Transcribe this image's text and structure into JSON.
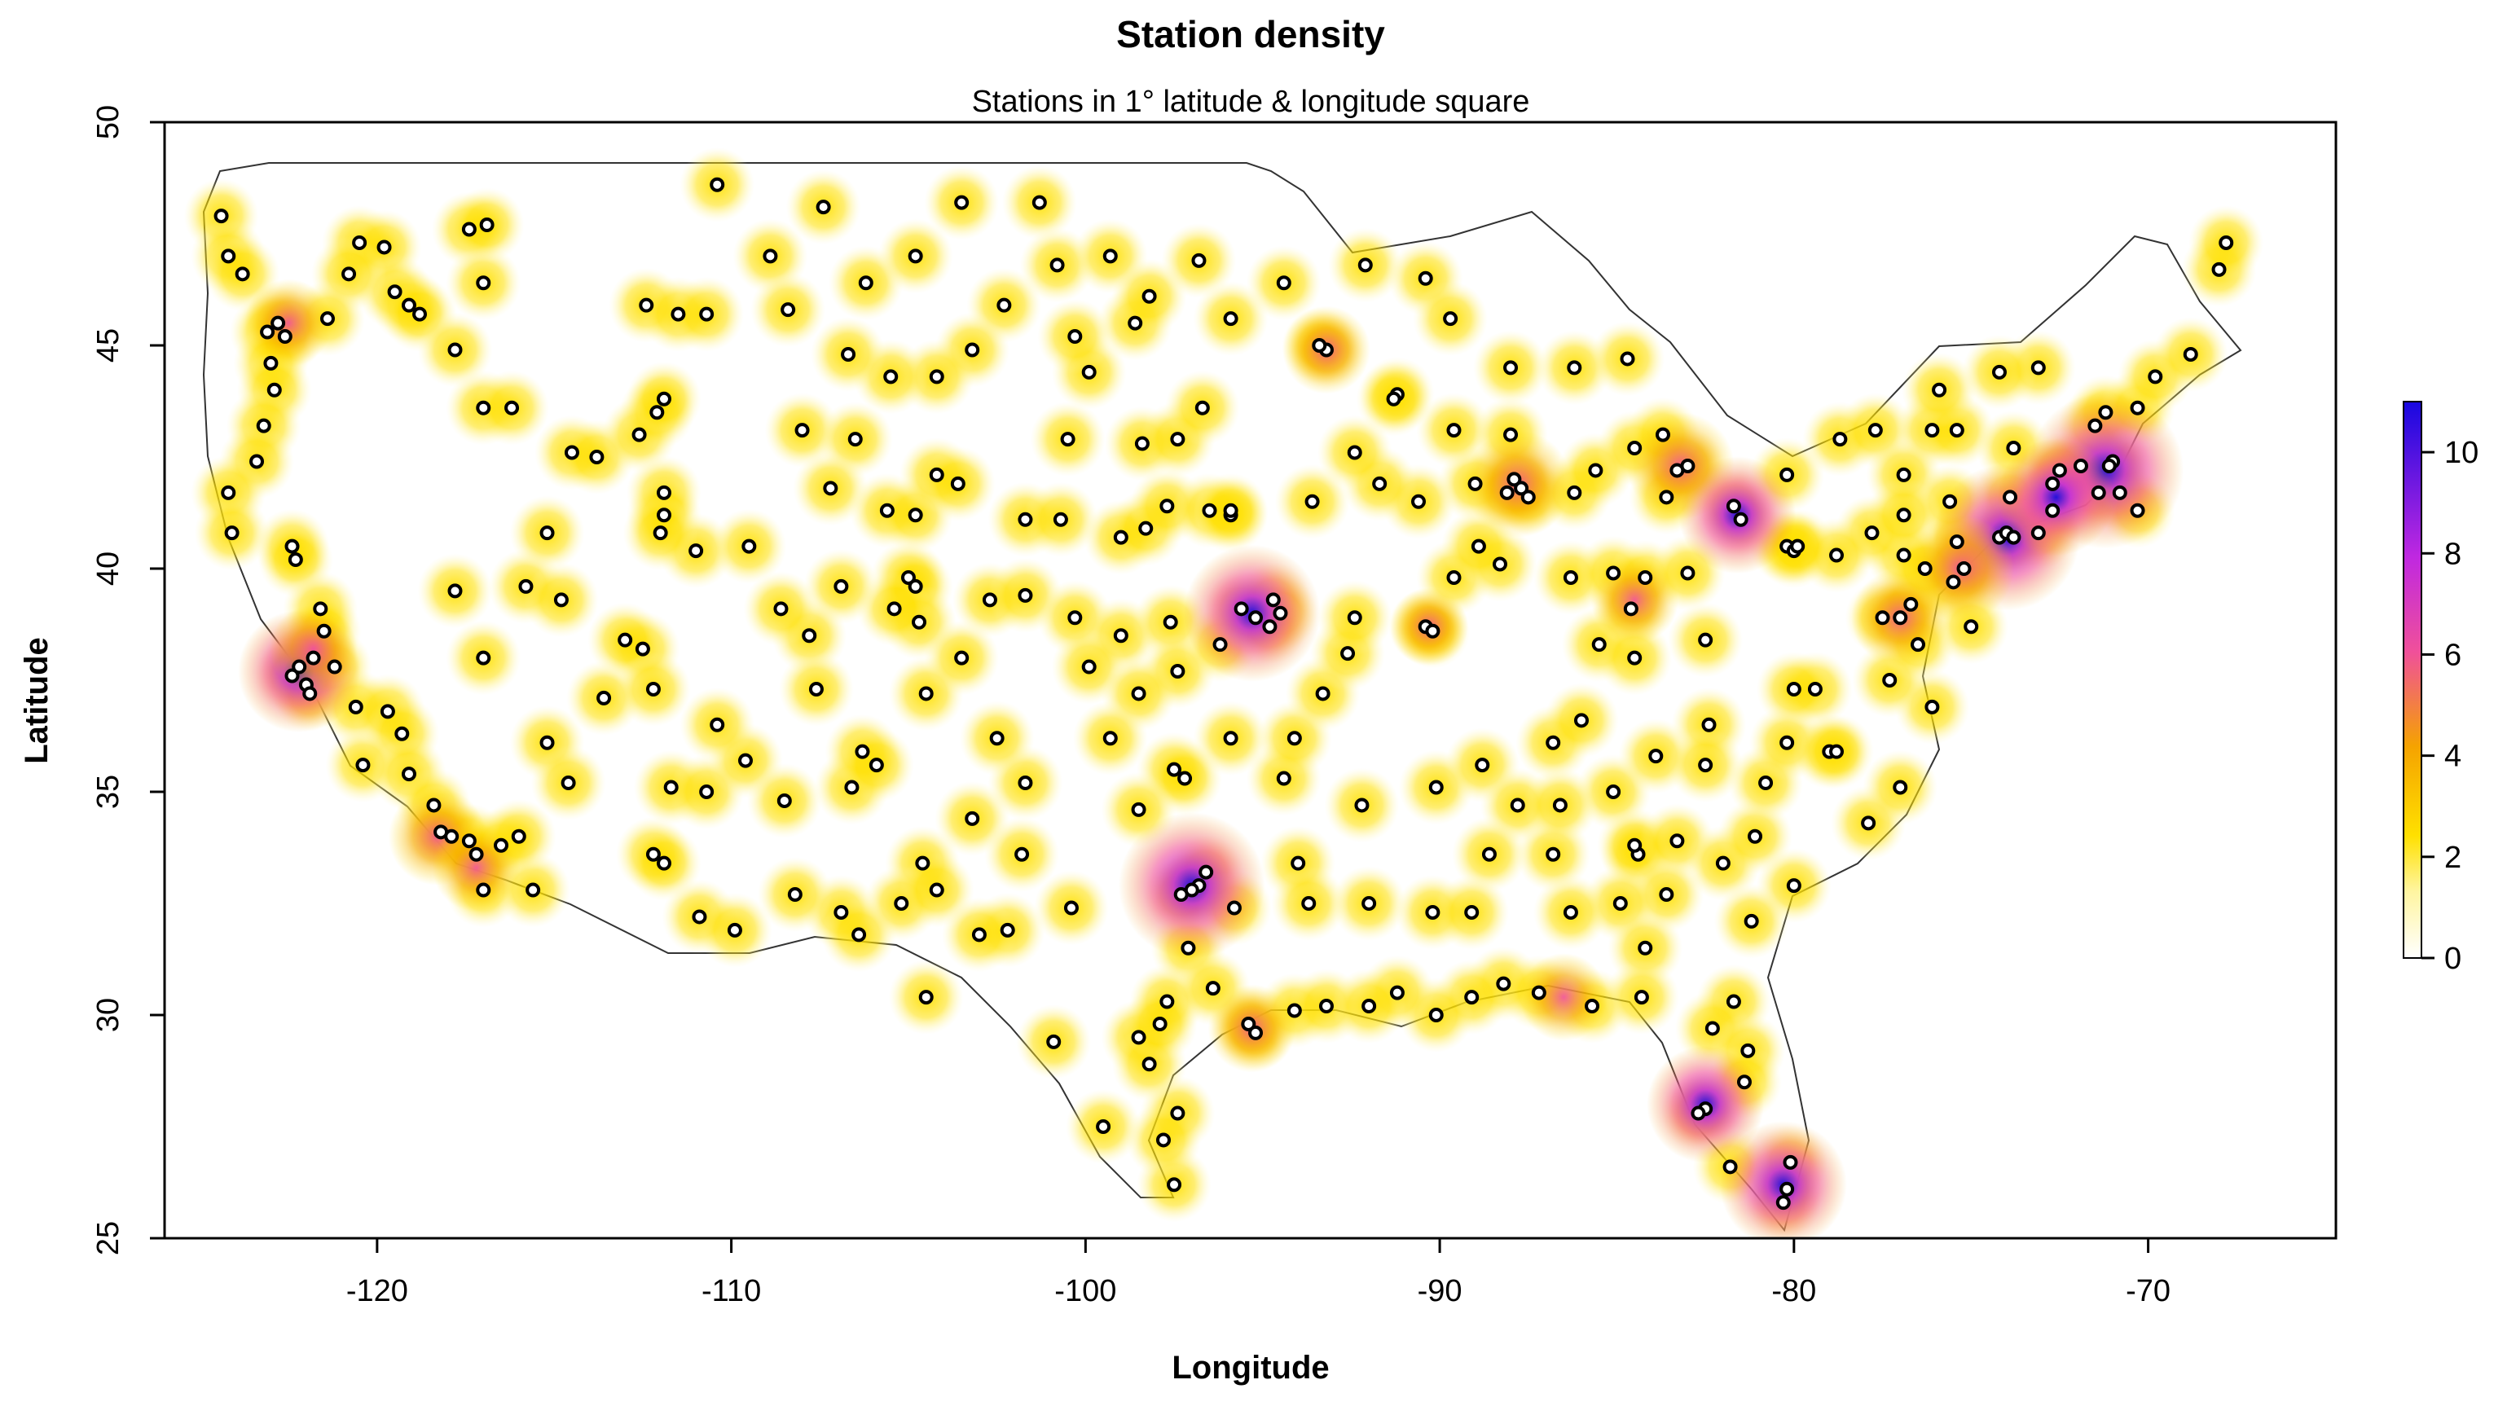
{
  "chart_data": {
    "type": "heatmap",
    "title": "Station density",
    "subtitle": "Stations in 1° latitude & longitude square",
    "xlabel": "Longitude",
    "ylabel": "Latitude",
    "xlim": [
      -126,
      -64.7
    ],
    "ylim": [
      25,
      50
    ],
    "x_ticks": [
      -120,
      -110,
      -100,
      -90,
      -80,
      -70
    ],
    "y_ticks": [
      25,
      30,
      35,
      40,
      45,
      50
    ],
    "x_tick_labels": [
      "-120",
      "-110",
      "-100",
      "-90",
      "-80",
      "-70"
    ],
    "y_tick_labels": [
      "25",
      "30",
      "35",
      "40",
      "45",
      "50"
    ],
    "colorbar": {
      "min": 0,
      "max": 11,
      "ticks": [
        0,
        2,
        4,
        6,
        8,
        10
      ],
      "tick_labels": [
        "0",
        "2",
        "4",
        "6",
        "8",
        "10"
      ],
      "colors": [
        "#ffffff",
        "#ffe800",
        "#f7a800",
        "#f0509a",
        "#b830e8",
        "#1a0de0"
      ]
    },
    "stations": [
      [
        -124.4,
        47.9
      ],
      [
        -124.2,
        47.0
      ],
      [
        -123.8,
        46.6
      ],
      [
        -123.1,
        45.3
      ],
      [
        -122.8,
        45.5
      ],
      [
        -122.6,
        45.2
      ],
      [
        -123.0,
        44.6
      ],
      [
        -122.9,
        44.0
      ],
      [
        -123.2,
        43.2
      ],
      [
        -123.4,
        42.4
      ],
      [
        -124.2,
        41.7
      ],
      [
        -124.1,
        40.8
      ],
      [
        -122.4,
        40.5
      ],
      [
        -122.3,
        40.2
      ],
      [
        -121.6,
        39.1
      ],
      [
        -121.5,
        38.6
      ],
      [
        -121.8,
        38.0
      ],
      [
        -122.2,
        37.8
      ],
      [
        -122.4,
        37.6
      ],
      [
        -122.0,
        37.4
      ],
      [
        -121.9,
        37.2
      ],
      [
        -121.2,
        37.8
      ],
      [
        -120.6,
        36.9
      ],
      [
        -119.7,
        36.8
      ],
      [
        -119.3,
        36.3
      ],
      [
        -120.4,
        35.6
      ],
      [
        -119.1,
        35.4
      ],
      [
        -118.4,
        34.7
      ],
      [
        -118.2,
        34.1
      ],
      [
        -117.9,
        34.0
      ],
      [
        -117.4,
        33.9
      ],
      [
        -117.2,
        33.6
      ],
      [
        -117.0,
        32.8
      ],
      [
        -116.5,
        33.8
      ],
      [
        -115.6,
        32.8
      ],
      [
        -116.0,
        34.0
      ],
      [
        -120.5,
        47.3
      ],
      [
        -119.8,
        47.2
      ],
      [
        -119.5,
        46.2
      ],
      [
        -119.1,
        45.9
      ],
      [
        -118.8,
        45.7
      ],
      [
        -120.8,
        46.6
      ],
      [
        -121.4,
        45.6
      ],
      [
        -117.4,
        47.6
      ],
      [
        -117.0,
        46.4
      ],
      [
        -116.9,
        47.7
      ],
      [
        -117.8,
        44.9
      ],
      [
        -117.0,
        43.6
      ],
      [
        -116.2,
        43.6
      ],
      [
        -114.5,
        42.6
      ],
      [
        -113.8,
        42.5
      ],
      [
        -112.6,
        43.0
      ],
      [
        -112.1,
        43.5
      ],
      [
        -111.9,
        43.8
      ],
      [
        -112.4,
        45.9
      ],
      [
        -111.5,
        45.7
      ],
      [
        -110.7,
        45.7
      ],
      [
        -111.9,
        41.7
      ],
      [
        -111.9,
        41.2
      ],
      [
        -111.0,
        40.4
      ],
      [
        -112.0,
        40.8
      ],
      [
        -109.5,
        40.5
      ],
      [
        -113.6,
        37.1
      ],
      [
        -112.5,
        38.2
      ],
      [
        -113.0,
        38.4
      ],
      [
        -112.2,
        37.3
      ],
      [
        -117.8,
        39.5
      ],
      [
        -117.0,
        38.0
      ],
      [
        -115.8,
        39.6
      ],
      [
        -115.2,
        40.8
      ],
      [
        -114.8,
        39.3
      ],
      [
        -115.2,
        36.1
      ],
      [
        -114.6,
        35.2
      ],
      [
        -112.2,
        33.6
      ],
      [
        -111.9,
        33.4
      ],
      [
        -110.9,
        32.2
      ],
      [
        -109.9,
        31.9
      ],
      [
        -111.7,
        35.1
      ],
      [
        -110.7,
        35.0
      ],
      [
        -109.6,
        35.7
      ],
      [
        -110.4,
        36.5
      ],
      [
        -108.5,
        34.8
      ],
      [
        -106.6,
        35.1
      ],
      [
        -106.3,
        35.9
      ],
      [
        -105.9,
        35.6
      ],
      [
        -104.6,
        33.4
      ],
      [
        -106.9,
        32.3
      ],
      [
        -105.2,
        32.5
      ],
      [
        -104.2,
        32.8
      ],
      [
        -103.2,
        34.4
      ],
      [
        -108.2,
        32.7
      ],
      [
        -110.4,
        48.6
      ],
      [
        -108.9,
        47.0
      ],
      [
        -107.4,
        48.1
      ],
      [
        -106.2,
        46.4
      ],
      [
        -104.8,
        47.0
      ],
      [
        -103.5,
        48.2
      ],
      [
        -101.3,
        48.2
      ],
      [
        -100.8,
        46.8
      ],
      [
        -99.3,
        47.0
      ],
      [
        -98.6,
        45.5
      ],
      [
        -98.2,
        46.1
      ],
      [
        -99.9,
        44.4
      ],
      [
        -100.3,
        45.2
      ],
      [
        -102.3,
        45.9
      ],
      [
        -103.2,
        44.9
      ],
      [
        -104.2,
        44.3
      ],
      [
        -105.5,
        44.3
      ],
      [
        -106.7,
        44.8
      ],
      [
        -108.4,
        45.8
      ],
      [
        -108.0,
        43.1
      ],
      [
        -106.5,
        42.9
      ],
      [
        -107.2,
        41.8
      ],
      [
        -105.6,
        41.3
      ],
      [
        -104.8,
        41.2
      ],
      [
        -104.2,
        42.1
      ],
      [
        -103.6,
        41.9
      ],
      [
        -101.7,
        41.1
      ],
      [
        -100.7,
        41.1
      ],
      [
        -99.0,
        40.7
      ],
      [
        -98.3,
        40.9
      ],
      [
        -97.7,
        41.4
      ],
      [
        -96.5,
        41.3
      ],
      [
        -95.9,
        41.2
      ],
      [
        -100.5,
        42.9
      ],
      [
        -98.4,
        42.8
      ],
      [
        -97.4,
        42.9
      ],
      [
        -96.7,
        43.6
      ],
      [
        -105.0,
        39.8
      ],
      [
        -104.8,
        39.6
      ],
      [
        -104.7,
        38.8
      ],
      [
        -105.4,
        39.1
      ],
      [
        -106.9,
        39.6
      ],
      [
        -107.8,
        38.5
      ],
      [
        -108.6,
        39.1
      ],
      [
        -107.6,
        37.3
      ],
      [
        -104.5,
        37.2
      ],
      [
        -103.5,
        38.0
      ],
      [
        -102.7,
        39.3
      ],
      [
        -101.7,
        39.4
      ],
      [
        -100.3,
        38.9
      ],
      [
        -99.0,
        38.5
      ],
      [
        -97.6,
        38.8
      ],
      [
        -97.4,
        37.7
      ],
      [
        -96.2,
        38.3
      ],
      [
        -95.6,
        39.1
      ],
      [
        -95.2,
        38.9
      ],
      [
        -94.7,
        39.3
      ],
      [
        -94.5,
        39.0
      ],
      [
        -94.8,
        38.7
      ],
      [
        -99.9,
        37.8
      ],
      [
        -98.5,
        37.2
      ],
      [
        -95.9,
        36.2
      ],
      [
        -97.5,
        35.5
      ],
      [
        -97.2,
        35.3
      ],
      [
        -98.5,
        34.6
      ],
      [
        -99.3,
        36.2
      ],
      [
        -101.7,
        35.2
      ],
      [
        -102.5,
        36.2
      ],
      [
        -101.8,
        33.6
      ],
      [
        -100.4,
        32.4
      ],
      [
        -102.2,
        31.9
      ],
      [
        -103.0,
        31.8
      ],
      [
        -104.5,
        30.4
      ],
      [
        -106.4,
        31.8
      ],
      [
        -100.9,
        29.4
      ],
      [
        -98.5,
        29.5
      ],
      [
        -97.7,
        30.3
      ],
      [
        -97.1,
        31.5
      ],
      [
        -96.8,
        32.9
      ],
      [
        -97.0,
        32.8
      ],
      [
        -97.3,
        32.7
      ],
      [
        -96.6,
        33.2
      ],
      [
        -95.8,
        32.4
      ],
      [
        -96.4,
        30.6
      ],
      [
        -95.4,
        29.8
      ],
      [
        -95.2,
        29.6
      ],
      [
        -94.1,
        30.1
      ],
      [
        -97.4,
        27.8
      ],
      [
        -97.5,
        26.2
      ],
      [
        -97.8,
        27.2
      ],
      [
        -98.2,
        28.9
      ],
      [
        -99.5,
        27.5
      ],
      [
        -97.9,
        29.8
      ],
      [
        -94.0,
        33.4
      ],
      [
        -93.7,
        32.5
      ],
      [
        -92.0,
        32.5
      ],
      [
        -92.2,
        34.7
      ],
      [
        -94.4,
        35.3
      ],
      [
        -94.1,
        36.2
      ],
      [
        -93.3,
        37.2
      ],
      [
        -92.6,
        38.1
      ],
      [
        -92.4,
        38.9
      ],
      [
        -90.4,
        38.7
      ],
      [
        -90.2,
        38.6
      ],
      [
        -89.6,
        39.8
      ],
      [
        -88.3,
        40.1
      ],
      [
        -88.9,
        40.5
      ],
      [
        -89.0,
        41.9
      ],
      [
        -87.7,
        41.8
      ],
      [
        -87.9,
        42.0
      ],
      [
        -88.1,
        41.7
      ],
      [
        -87.5,
        41.6
      ],
      [
        -86.2,
        41.7
      ],
      [
        -86.3,
        39.8
      ],
      [
        -85.1,
        39.9
      ],
      [
        -85.5,
        38.3
      ],
      [
        -84.6,
        39.1
      ],
      [
        -84.2,
        39.8
      ],
      [
        -84.5,
        38.0
      ],
      [
        -82.5,
        38.4
      ],
      [
        -83.0,
        39.9
      ],
      [
        -81.5,
        41.1
      ],
      [
        -81.7,
        41.4
      ],
      [
        -80.2,
        40.5
      ],
      [
        -80.0,
        40.4
      ],
      [
        -83.6,
        41.6
      ],
      [
        -83.0,
        42.3
      ],
      [
        -83.3,
        42.2
      ],
      [
        -85.6,
        42.2
      ],
      [
        -84.5,
        42.7
      ],
      [
        -83.7,
        43.0
      ],
      [
        -86.2,
        44.5
      ],
      [
        -84.7,
        44.7
      ],
      [
        -88.0,
        44.5
      ],
      [
        -89.6,
        43.1
      ],
      [
        -88.0,
        43.0
      ],
      [
        -91.2,
        43.9
      ],
      [
        -93.2,
        44.9
      ],
      [
        -93.4,
        45.0
      ],
      [
        -92.1,
        46.8
      ],
      [
        -94.4,
        46.4
      ],
      [
        -96.8,
        46.9
      ],
      [
        -95.9,
        45.6
      ],
      [
        -90.4,
        46.5
      ],
      [
        -89.7,
        45.6
      ],
      [
        -91.3,
        43.8
      ],
      [
        -90.6,
        41.5
      ],
      [
        -93.6,
        41.5
      ],
      [
        -91.7,
        41.9
      ],
      [
        -92.4,
        42.6
      ],
      [
        -95.9,
        41.3
      ],
      [
        -90.1,
        35.1
      ],
      [
        -88.8,
        35.6
      ],
      [
        -86.8,
        36.1
      ],
      [
        -86.0,
        36.6
      ],
      [
        -85.1,
        35.0
      ],
      [
        -83.9,
        35.8
      ],
      [
        -82.4,
        36.5
      ],
      [
        -82.5,
        35.6
      ],
      [
        -84.4,
        33.6
      ],
      [
        -84.5,
        33.8
      ],
      [
        -83.3,
        33.9
      ],
      [
        -82.0,
        33.4
      ],
      [
        -81.1,
        34.0
      ],
      [
        -80.0,
        32.9
      ],
      [
        -81.2,
        32.1
      ],
      [
        -83.6,
        32.7
      ],
      [
        -84.9,
        32.5
      ],
      [
        -84.2,
        31.5
      ],
      [
        -86.3,
        32.3
      ],
      [
        -86.8,
        33.6
      ],
      [
        -87.8,
        34.7
      ],
      [
        -86.6,
        34.7
      ],
      [
        -88.2,
        30.7
      ],
      [
        -87.2,
        30.5
      ],
      [
        -85.7,
        30.2
      ],
      [
        -84.3,
        30.4
      ],
      [
        -81.7,
        30.3
      ],
      [
        -82.3,
        29.7
      ],
      [
        -81.3,
        29.2
      ],
      [
        -81.4,
        28.5
      ],
      [
        -82.5,
        27.9
      ],
      [
        -82.7,
        27.8
      ],
      [
        -81.8,
        26.6
      ],
      [
        -80.1,
        26.7
      ],
      [
        -80.3,
        25.8
      ],
      [
        -80.2,
        26.1
      ],
      [
        -89.1,
        30.4
      ],
      [
        -90.1,
        30.0
      ],
      [
        -91.2,
        30.5
      ],
      [
        -93.2,
        30.2
      ],
      [
        -92.0,
        30.2
      ],
      [
        -90.2,
        32.3
      ],
      [
        -88.6,
        33.6
      ],
      [
        -89.1,
        32.3
      ],
      [
        -80.8,
        35.2
      ],
      [
        -80.2,
        36.1
      ],
      [
        -79.0,
        35.9
      ],
      [
        -78.8,
        35.9
      ],
      [
        -77.9,
        34.3
      ],
      [
        -77.0,
        35.1
      ],
      [
        -76.1,
        36.9
      ],
      [
        -77.3,
        37.5
      ],
      [
        -79.4,
        37.3
      ],
      [
        -80.0,
        37.3
      ],
      [
        -77.5,
        38.9
      ],
      [
        -77.0,
        38.9
      ],
      [
        -76.7,
        39.2
      ],
      [
        -75.5,
        39.7
      ],
      [
        -75.2,
        40.0
      ],
      [
        -75.4,
        40.6
      ],
      [
        -76.9,
        40.3
      ],
      [
        -76.3,
        40.0
      ],
      [
        -77.8,
        40.8
      ],
      [
        -78.8,
        40.3
      ],
      [
        -79.9,
        40.5
      ],
      [
        -80.2,
        42.1
      ],
      [
        -78.7,
        42.9
      ],
      [
        -77.7,
        43.1
      ],
      [
        -76.1,
        43.1
      ],
      [
        -75.4,
        43.1
      ],
      [
        -73.8,
        42.7
      ],
      [
        -73.9,
        41.6
      ],
      [
        -74.2,
        40.7
      ],
      [
        -74.0,
        40.8
      ],
      [
        -73.8,
        40.7
      ],
      [
        -73.1,
        40.8
      ],
      [
        -72.7,
        41.9
      ],
      [
        -72.7,
        41.3
      ],
      [
        -71.4,
        41.7
      ],
      [
        -71.0,
        42.4
      ],
      [
        -71.1,
        42.3
      ],
      [
        -71.9,
        42.3
      ],
      [
        -70.8,
        41.7
      ],
      [
        -70.3,
        41.3
      ],
      [
        -72.5,
        42.2
      ],
      [
        -73.1,
        44.5
      ],
      [
        -71.5,
        43.2
      ],
      [
        -71.2,
        43.5
      ],
      [
        -70.3,
        43.6
      ],
      [
        -69.8,
        44.3
      ],
      [
        -68.8,
        44.8
      ],
      [
        -68.0,
        46.7
      ],
      [
        -67.8,
        47.3
      ],
      [
        -75.9,
        44.0
      ],
      [
        -74.2,
        44.4
      ],
      [
        -76.9,
        42.1
      ],
      [
        -75.6,
        41.5
      ],
      [
        -76.9,
        41.2
      ],
      [
        -75.0,
        38.7
      ],
      [
        -76.5,
        38.3
      ]
    ],
    "hotspots": [
      [
        -122.2,
        37.7,
        7.5
      ],
      [
        -118.3,
        34.0,
        5
      ],
      [
        -121.8,
        38.2,
        4
      ],
      [
        -97.0,
        32.9,
        10
      ],
      [
        -95.3,
        39.0,
        9
      ],
      [
        -95.3,
        29.7,
        4
      ],
      [
        -93.2,
        44.9,
        4
      ],
      [
        -87.8,
        41.9,
        6
      ],
      [
        -83.2,
        42.3,
        6
      ],
      [
        -81.6,
        41.2,
        7
      ],
      [
        -84.5,
        39.3,
        4
      ],
      [
        -74.0,
        40.7,
        10
      ],
      [
        -71.2,
        42.2,
        11
      ],
      [
        -72.6,
        41.6,
        7
      ],
      [
        -75.3,
        40.0,
        6
      ],
      [
        -77.0,
        38.9,
        5
      ],
      [
        -82.5,
        28.0,
        7
      ],
      [
        -80.3,
        26.2,
        8
      ],
      [
        -86.5,
        30.4,
        4
      ],
      [
        -117.2,
        33.3,
        4
      ],
      [
        -122.5,
        45.5,
        4
      ],
      [
        -90.3,
        38.7,
        3
      ]
    ]
  }
}
